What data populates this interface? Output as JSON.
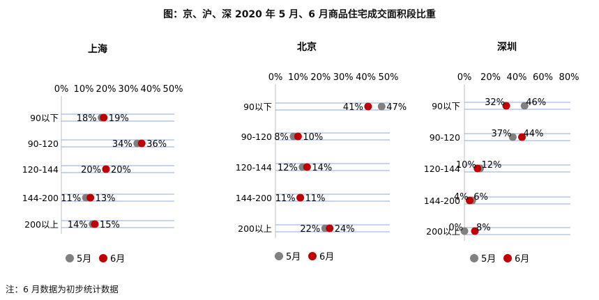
{
  "title": "图：京、沪、深 2020 年 5 月、6 月商品住宅成交面积段比重",
  "footnote": "注：6 月数据为初步统计数据",
  "chart_data": [
    {
      "type": "scatter",
      "title": "上海",
      "categories": [
        "90以下",
        "90-120",
        "120-144",
        "144-200",
        "200以上"
      ],
      "xlim": [
        0,
        50
      ],
      "xticks": [
        "0%",
        "10%",
        "20%",
        "30%",
        "40%",
        "50%"
      ],
      "series": [
        {
          "name": "5月",
          "color": "#808080",
          "values": [
            18,
            34,
            20,
            11,
            14
          ],
          "labels": [
            "18%",
            "34%",
            "20%",
            "11%",
            "14%"
          ]
        },
        {
          "name": "6月",
          "color": "#c00000",
          "values": [
            19,
            36,
            20,
            13,
            15
          ],
          "labels": [
            "19%",
            "36%",
            "20%",
            "13%",
            "15%"
          ]
        }
      ]
    },
    {
      "type": "scatter",
      "title": "北京",
      "categories": [
        "90以下",
        "90-120",
        "120-144",
        "144-200",
        "200以上"
      ],
      "xlim": [
        0,
        50
      ],
      "xticks": [
        "0%",
        "10%",
        "20%",
        "30%",
        "40%",
        "50%"
      ],
      "series": [
        {
          "name": "5月",
          "color": "#808080",
          "values": [
            47,
            8,
            12,
            11,
            22
          ],
          "labels": [
            "47%",
            "8%",
            "12%",
            "11%",
            "22%"
          ]
        },
        {
          "name": "6月",
          "color": "#c00000",
          "values": [
            41,
            10,
            14,
            11,
            24
          ],
          "labels": [
            "41%",
            "10%",
            "14%",
            "11%",
            "24%"
          ]
        }
      ]
    },
    {
      "type": "scatter",
      "title": "深圳",
      "categories": [
        "90以下",
        "90-120",
        "120-144",
        "144-200",
        "200以上"
      ],
      "xlim": [
        0,
        80
      ],
      "xticks": [
        "0%",
        "20%",
        "40%",
        "60%",
        "80%"
      ],
      "series": [
        {
          "name": "5月",
          "color": "#808080",
          "values": [
            46,
            37,
            12,
            6,
            0
          ],
          "labels": [
            "46%",
            "37%",
            "12%",
            "6%",
            "0%"
          ]
        },
        {
          "name": "6月",
          "color": "#c00000",
          "values": [
            32,
            44,
            10,
            4,
            8
          ],
          "labels": [
            "32%",
            "44%",
            "10%",
            "4%",
            "8%"
          ]
        }
      ]
    }
  ]
}
